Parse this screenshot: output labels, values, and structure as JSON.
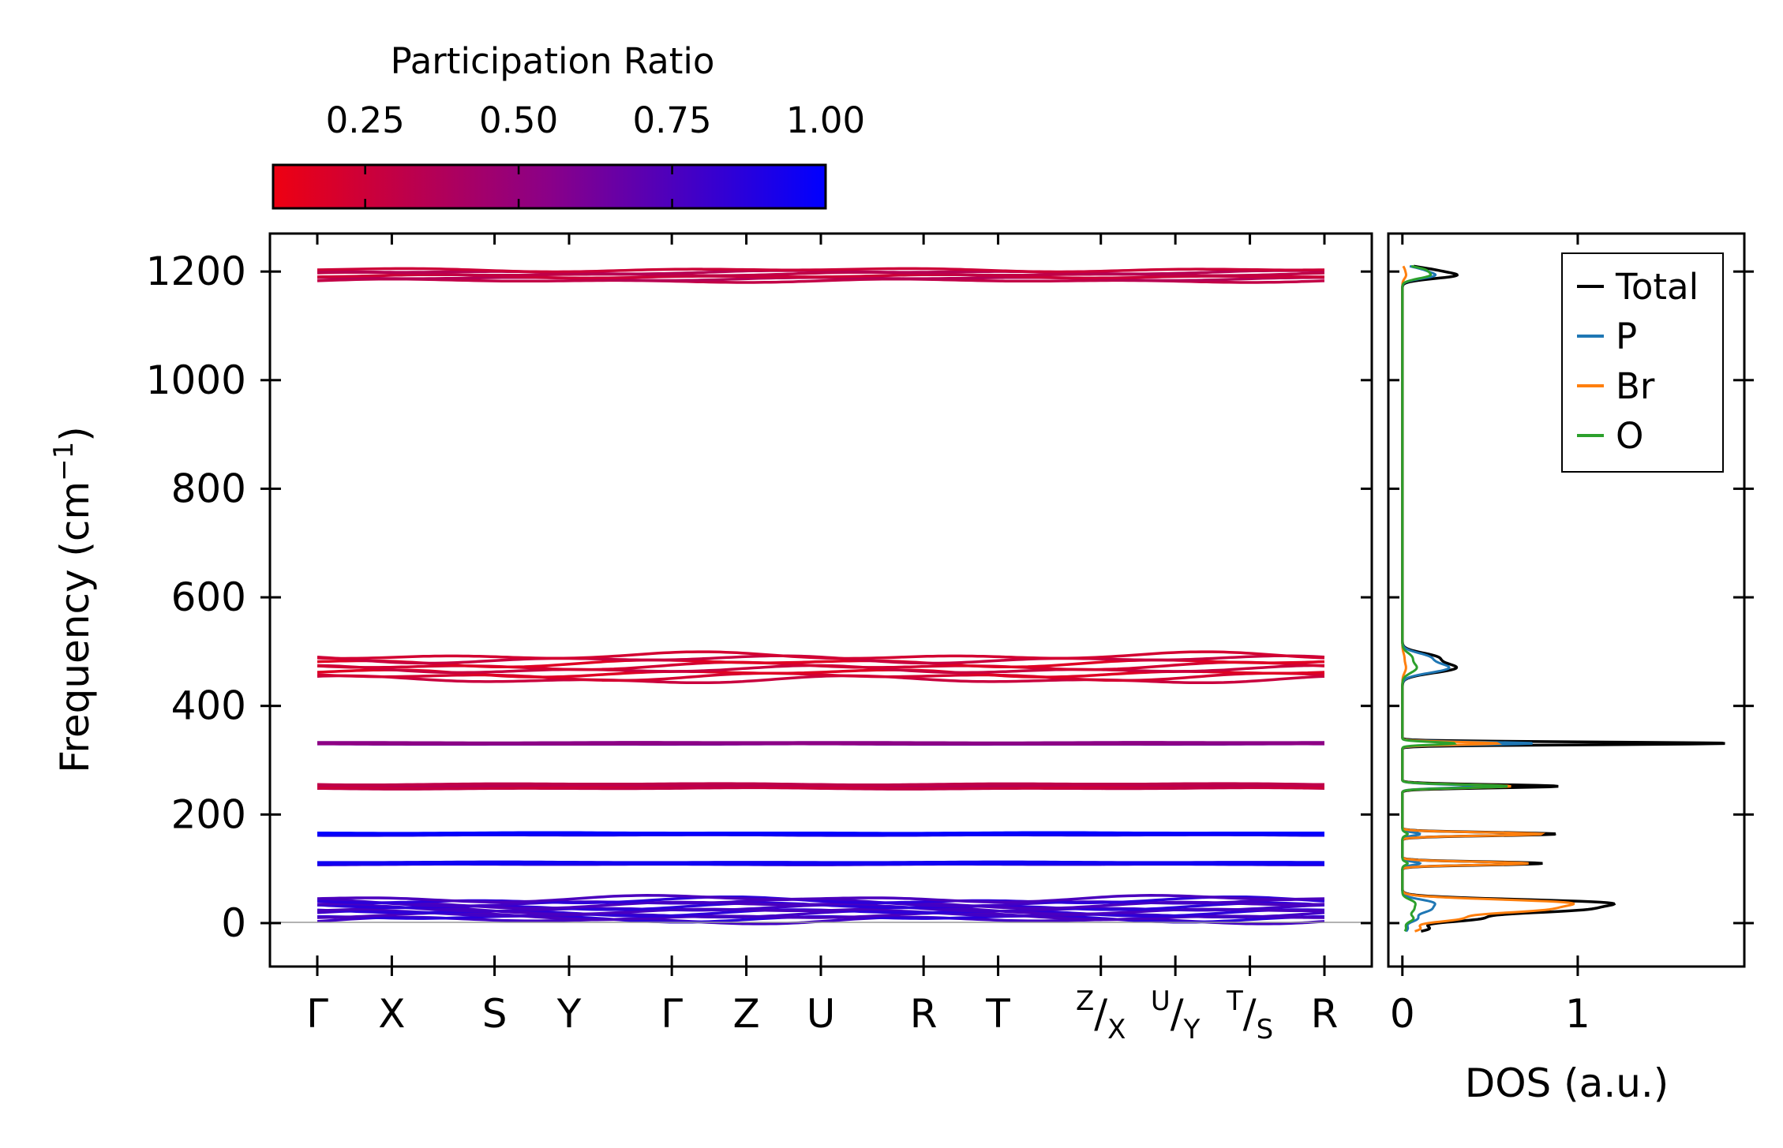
{
  "colorbar": {
    "title": "Participation Ratio",
    "range": [
      0.1,
      1.0
    ],
    "ticks": [
      0.25,
      0.5,
      0.75,
      1.0
    ],
    "tick_labels": [
      "0.25",
      "0.50",
      "0.75",
      "1.00"
    ],
    "color_low": "#ee0011",
    "color_high": "#0000ff"
  },
  "chart_data": [
    {
      "type": "line",
      "name": "phonon-band-structure",
      "ylabel_main": "Frequency (cm",
      "ylabel_sup": "−1",
      "ylabel_close": ")",
      "ylim": [
        -80,
        1270
      ],
      "yticks": [
        0,
        200,
        400,
        600,
        800,
        1000,
        1200
      ],
      "ytick_labels": [
        "0",
        "200",
        "400",
        "600",
        "800",
        "1000",
        "1200"
      ],
      "kpoints": [
        {
          "pos": 0.0,
          "main": "Γ",
          "sup": "",
          "sub": ""
        },
        {
          "pos": 0.074,
          "main": "X",
          "sup": "",
          "sub": ""
        },
        {
          "pos": 0.176,
          "main": "S",
          "sup": "",
          "sub": ""
        },
        {
          "pos": 0.25,
          "main": "Y",
          "sup": "",
          "sub": ""
        },
        {
          "pos": 0.352,
          "main": "Γ",
          "sup": "",
          "sub": ""
        },
        {
          "pos": 0.426,
          "main": "Z",
          "sup": "",
          "sub": ""
        },
        {
          "pos": 0.5,
          "main": "U",
          "sup": "",
          "sub": ""
        },
        {
          "pos": 0.602,
          "main": "R",
          "sup": "",
          "sub": ""
        },
        {
          "pos": 0.676,
          "main": "T",
          "sup": "",
          "sub": ""
        },
        {
          "pos": 0.778,
          "main": "/",
          "sup": "Z",
          "sub": "X"
        },
        {
          "pos": 0.852,
          "main": "/",
          "sup": "U",
          "sub": "Y"
        },
        {
          "pos": 0.926,
          "main": "/",
          "sup": "T",
          "sub": "S"
        },
        {
          "pos": 1.0,
          "main": "R",
          "sup": "",
          "sub": ""
        }
      ],
      "band_groups": [
        {
          "center": 1193,
          "spread": 10,
          "count": 6,
          "pr": 0.3
        },
        {
          "center": 470,
          "spread": 22,
          "count": 8,
          "pr": 0.22
        },
        {
          "center": 331,
          "spread": 1.5,
          "count": 3,
          "pr": 0.55
        },
        {
          "center": 252,
          "spread": 4,
          "count": 4,
          "pr": 0.3
        },
        {
          "center": 164,
          "spread": 2,
          "count": 3,
          "pr": 0.97
        },
        {
          "center": 110,
          "spread": 2,
          "count": 3,
          "pr": 0.93
        },
        {
          "center": 25,
          "spread": 20,
          "count": 12,
          "pr": 0.8
        }
      ]
    },
    {
      "type": "line",
      "name": "phonon-dos",
      "xlabel": "DOS (a.u.)",
      "xlim": [
        -0.08,
        1.95
      ],
      "ylim": [
        -80,
        1270
      ],
      "xticks": [
        0,
        1
      ],
      "xtick_labels": [
        "0",
        "1"
      ],
      "legend_position": "top-right",
      "peaks": [
        {
          "f": 1193,
          "w": 6,
          "total": 0.3,
          "P": 0.18,
          "Br": 0.02,
          "O": 0.15
        },
        {
          "f": 1204,
          "w": 5,
          "total": 0.12,
          "P": 0.08,
          "Br": 0.01,
          "O": 0.1
        },
        {
          "f": 470,
          "w": 9,
          "total": 0.3,
          "P": 0.26,
          "Br": 0.02,
          "O": 0.08
        },
        {
          "f": 490,
          "w": 8,
          "total": 0.18,
          "P": 0.14,
          "Br": 0.01,
          "O": 0.05
        },
        {
          "f": 331,
          "w": 2.5,
          "total": 1.86,
          "P": 0.75,
          "Br": 0.55,
          "O": 0.3
        },
        {
          "f": 252,
          "w": 3,
          "total": 0.89,
          "P": 0.45,
          "Br": 0.62,
          "O": 0.6
        },
        {
          "f": 164,
          "w": 3,
          "total": 0.88,
          "P": 0.1,
          "Br": 0.8,
          "O": 0.03
        },
        {
          "f": 110,
          "w": 3,
          "total": 0.8,
          "P": 0.1,
          "Br": 0.72,
          "O": 0.03
        },
        {
          "f": 38,
          "w": 6,
          "total": 0.98,
          "P": 0.15,
          "Br": 0.8,
          "O": 0.06
        },
        {
          "f": 25,
          "w": 7,
          "total": 0.95,
          "P": 0.15,
          "Br": 0.75,
          "O": 0.06
        },
        {
          "f": 8,
          "w": 6,
          "total": 0.4,
          "P": 0.08,
          "Br": 0.3,
          "O": 0.06
        },
        {
          "f": -10,
          "w": 6,
          "total": 0.15,
          "P": 0.03,
          "Br": 0.1,
          "O": 0.02
        }
      ],
      "series": [
        {
          "name": "Total",
          "color": "#000000"
        },
        {
          "name": "P",
          "color": "#1f77b4"
        },
        {
          "name": "Br",
          "color": "#ff7f0e"
        },
        {
          "name": "O",
          "color": "#2ca02c"
        }
      ]
    }
  ]
}
